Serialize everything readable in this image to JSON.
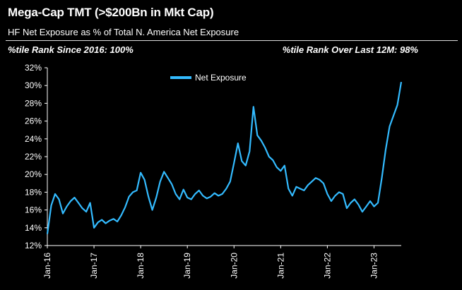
{
  "header": {
    "title": "Mega-Cap TMT (>$200Bn in Mkt Cap)",
    "subtitle": "HF Net Exposure as % of Total N. America Net Exposure",
    "rank_left": "%tile Rank Since 2016: 100%",
    "rank_right": "%tile Rank Over Last 12M: 98%"
  },
  "colors": {
    "line": "#33bbff",
    "background": "#000000",
    "axis": "#ffffff"
  },
  "chart_data": {
    "type": "line",
    "title": "Mega-Cap TMT (>$200Bn in Mkt Cap)",
    "subtitle": "HF Net Exposure as % of Total N. America Net Exposure",
    "xlabel": "",
    "ylabel": "",
    "ylim": [
      12,
      32
    ],
    "xlim": [
      "2016-01",
      "2023-08"
    ],
    "yticks": [
      "12%",
      "14%",
      "16%",
      "18%",
      "20%",
      "22%",
      "24%",
      "26%",
      "28%",
      "30%",
      "32%"
    ],
    "xticks": [
      "Jan-16",
      "Jan-17",
      "Jan-18",
      "Jan-19",
      "Jan-20",
      "Jan-21",
      "Jan-22",
      "Jan-23"
    ],
    "legend": {
      "position": "top-center",
      "entries": [
        "Net Exposure"
      ]
    },
    "grid": false,
    "series": [
      {
        "name": "Net Exposure",
        "x": [
          "2016-01",
          "2016-02",
          "2016-03",
          "2016-04",
          "2016-05",
          "2016-06",
          "2016-07",
          "2016-08",
          "2016-09",
          "2016-10",
          "2016-11",
          "2016-12",
          "2017-01",
          "2017-02",
          "2017-03",
          "2017-04",
          "2017-05",
          "2017-06",
          "2017-07",
          "2017-08",
          "2017-09",
          "2017-10",
          "2017-11",
          "2017-12",
          "2018-01",
          "2018-02",
          "2018-03",
          "2018-04",
          "2018-05",
          "2018-06",
          "2018-07",
          "2018-08",
          "2018-09",
          "2018-10",
          "2018-11",
          "2018-12",
          "2019-01",
          "2019-02",
          "2019-03",
          "2019-04",
          "2019-05",
          "2019-06",
          "2019-07",
          "2019-08",
          "2019-09",
          "2019-10",
          "2019-11",
          "2019-12",
          "2020-01",
          "2020-02",
          "2020-03",
          "2020-04",
          "2020-05",
          "2020-06",
          "2020-07",
          "2020-08",
          "2020-09",
          "2020-10",
          "2020-11",
          "2020-12",
          "2021-01",
          "2021-02",
          "2021-03",
          "2021-04",
          "2021-05",
          "2021-06",
          "2021-07",
          "2021-08",
          "2021-09",
          "2021-10",
          "2021-11",
          "2021-12",
          "2022-01",
          "2022-02",
          "2022-03",
          "2022-04",
          "2022-05",
          "2022-06",
          "2022-07",
          "2022-08",
          "2022-09",
          "2022-10",
          "2022-11",
          "2022-12",
          "2023-01",
          "2023-02",
          "2023-03",
          "2023-04",
          "2023-05",
          "2023-06",
          "2023-07",
          "2023-08"
        ],
        "values": [
          13.3,
          16.5,
          17.8,
          17.2,
          15.6,
          16.4,
          17.0,
          17.4,
          16.8,
          16.2,
          15.8,
          16.8,
          14.0,
          14.6,
          14.9,
          14.5,
          14.8,
          15.0,
          14.7,
          15.4,
          16.3,
          17.5,
          18.0,
          18.2,
          20.2,
          19.4,
          17.5,
          16.0,
          17.4,
          19.2,
          20.3,
          19.6,
          18.9,
          17.8,
          17.2,
          18.3,
          17.4,
          17.2,
          17.8,
          18.2,
          17.6,
          17.3,
          17.5,
          17.9,
          17.6,
          17.8,
          18.4,
          19.2,
          21.3,
          23.5,
          21.5,
          21.0,
          22.6,
          27.6,
          24.4,
          23.8,
          23.0,
          22.0,
          21.6,
          20.8,
          20.4,
          21.0,
          18.4,
          17.6,
          18.6,
          18.4,
          18.2,
          18.8,
          19.2,
          19.6,
          19.4,
          19.0,
          17.8,
          17.0,
          17.6,
          18.0,
          17.8,
          16.2,
          16.8,
          17.2,
          16.6,
          15.8,
          16.4,
          17.0,
          16.4,
          16.8,
          19.6,
          22.8,
          25.4,
          26.6,
          27.8,
          30.4
        ]
      }
    ]
  }
}
